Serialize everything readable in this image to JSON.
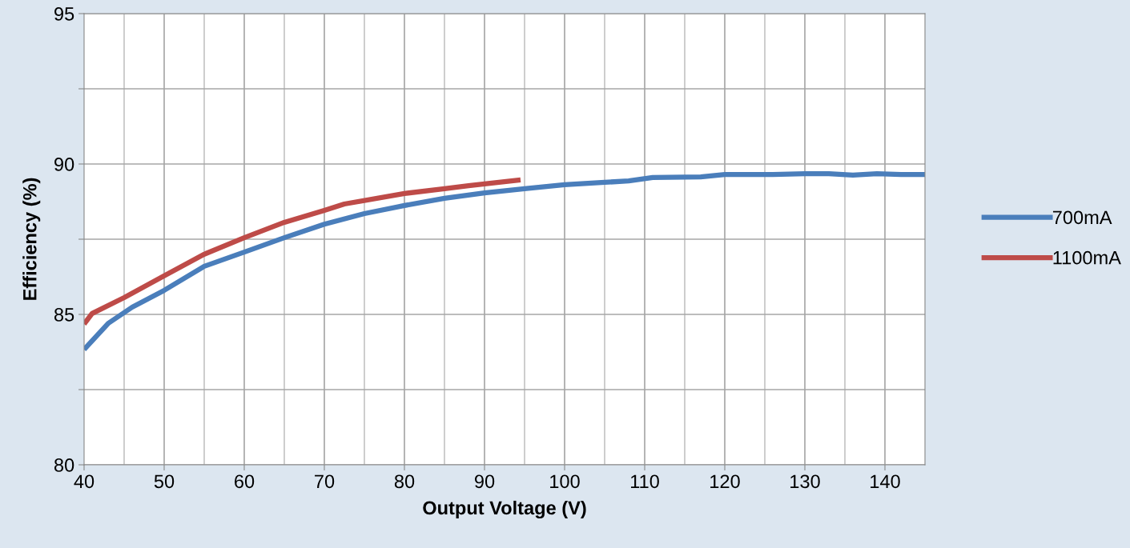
{
  "chart_data": {
    "type": "line",
    "xlabel": "Output Voltage (V)",
    "ylabel": "Efficiency (%)",
    "xlim": [
      40,
      145
    ],
    "xticks": [
      40,
      50,
      60,
      70,
      80,
      90,
      100,
      110,
      120,
      130,
      140
    ],
    "ylim": [
      80,
      95
    ],
    "yticks": [
      80,
      {
        "value": 82.5,
        "label": null
      },
      85,
      {
        "value": 87.5,
        "label": null
      },
      90,
      {
        "value": 92.5,
        "label": null
      },
      95
    ],
    "grid": true,
    "legend": "right",
    "marker": "none",
    "line_style": "solid",
    "series": [
      {
        "name": "700mA",
        "color": "#4a7ebb",
        "x": [
          40,
          43,
          46,
          50,
          55,
          60,
          65,
          70,
          75,
          80,
          85,
          90,
          95,
          100,
          105,
          108,
          111,
          117,
          120,
          126,
          130,
          133,
          136,
          139,
          142,
          145
        ],
        "values": [
          83.83,
          84.7,
          85.24,
          85.8,
          86.6,
          87.07,
          87.55,
          88.0,
          88.35,
          88.62,
          88.86,
          89.04,
          89.18,
          89.31,
          89.39,
          89.44,
          89.55,
          89.57,
          89.65,
          89.65,
          89.68,
          89.68,
          89.63,
          89.68,
          89.65,
          89.65
        ]
      },
      {
        "name": "1100mA",
        "color": "#be4b48",
        "x": [
          40,
          41,
          45,
          50,
          55,
          60,
          65,
          70,
          72.5,
          80,
          85,
          88,
          90,
          94.5
        ],
        "values": [
          84.68,
          85.03,
          85.56,
          86.28,
          87.0,
          87.55,
          88.06,
          88.46,
          88.67,
          89.02,
          89.18,
          89.28,
          89.34,
          89.47
        ]
      }
    ]
  }
}
